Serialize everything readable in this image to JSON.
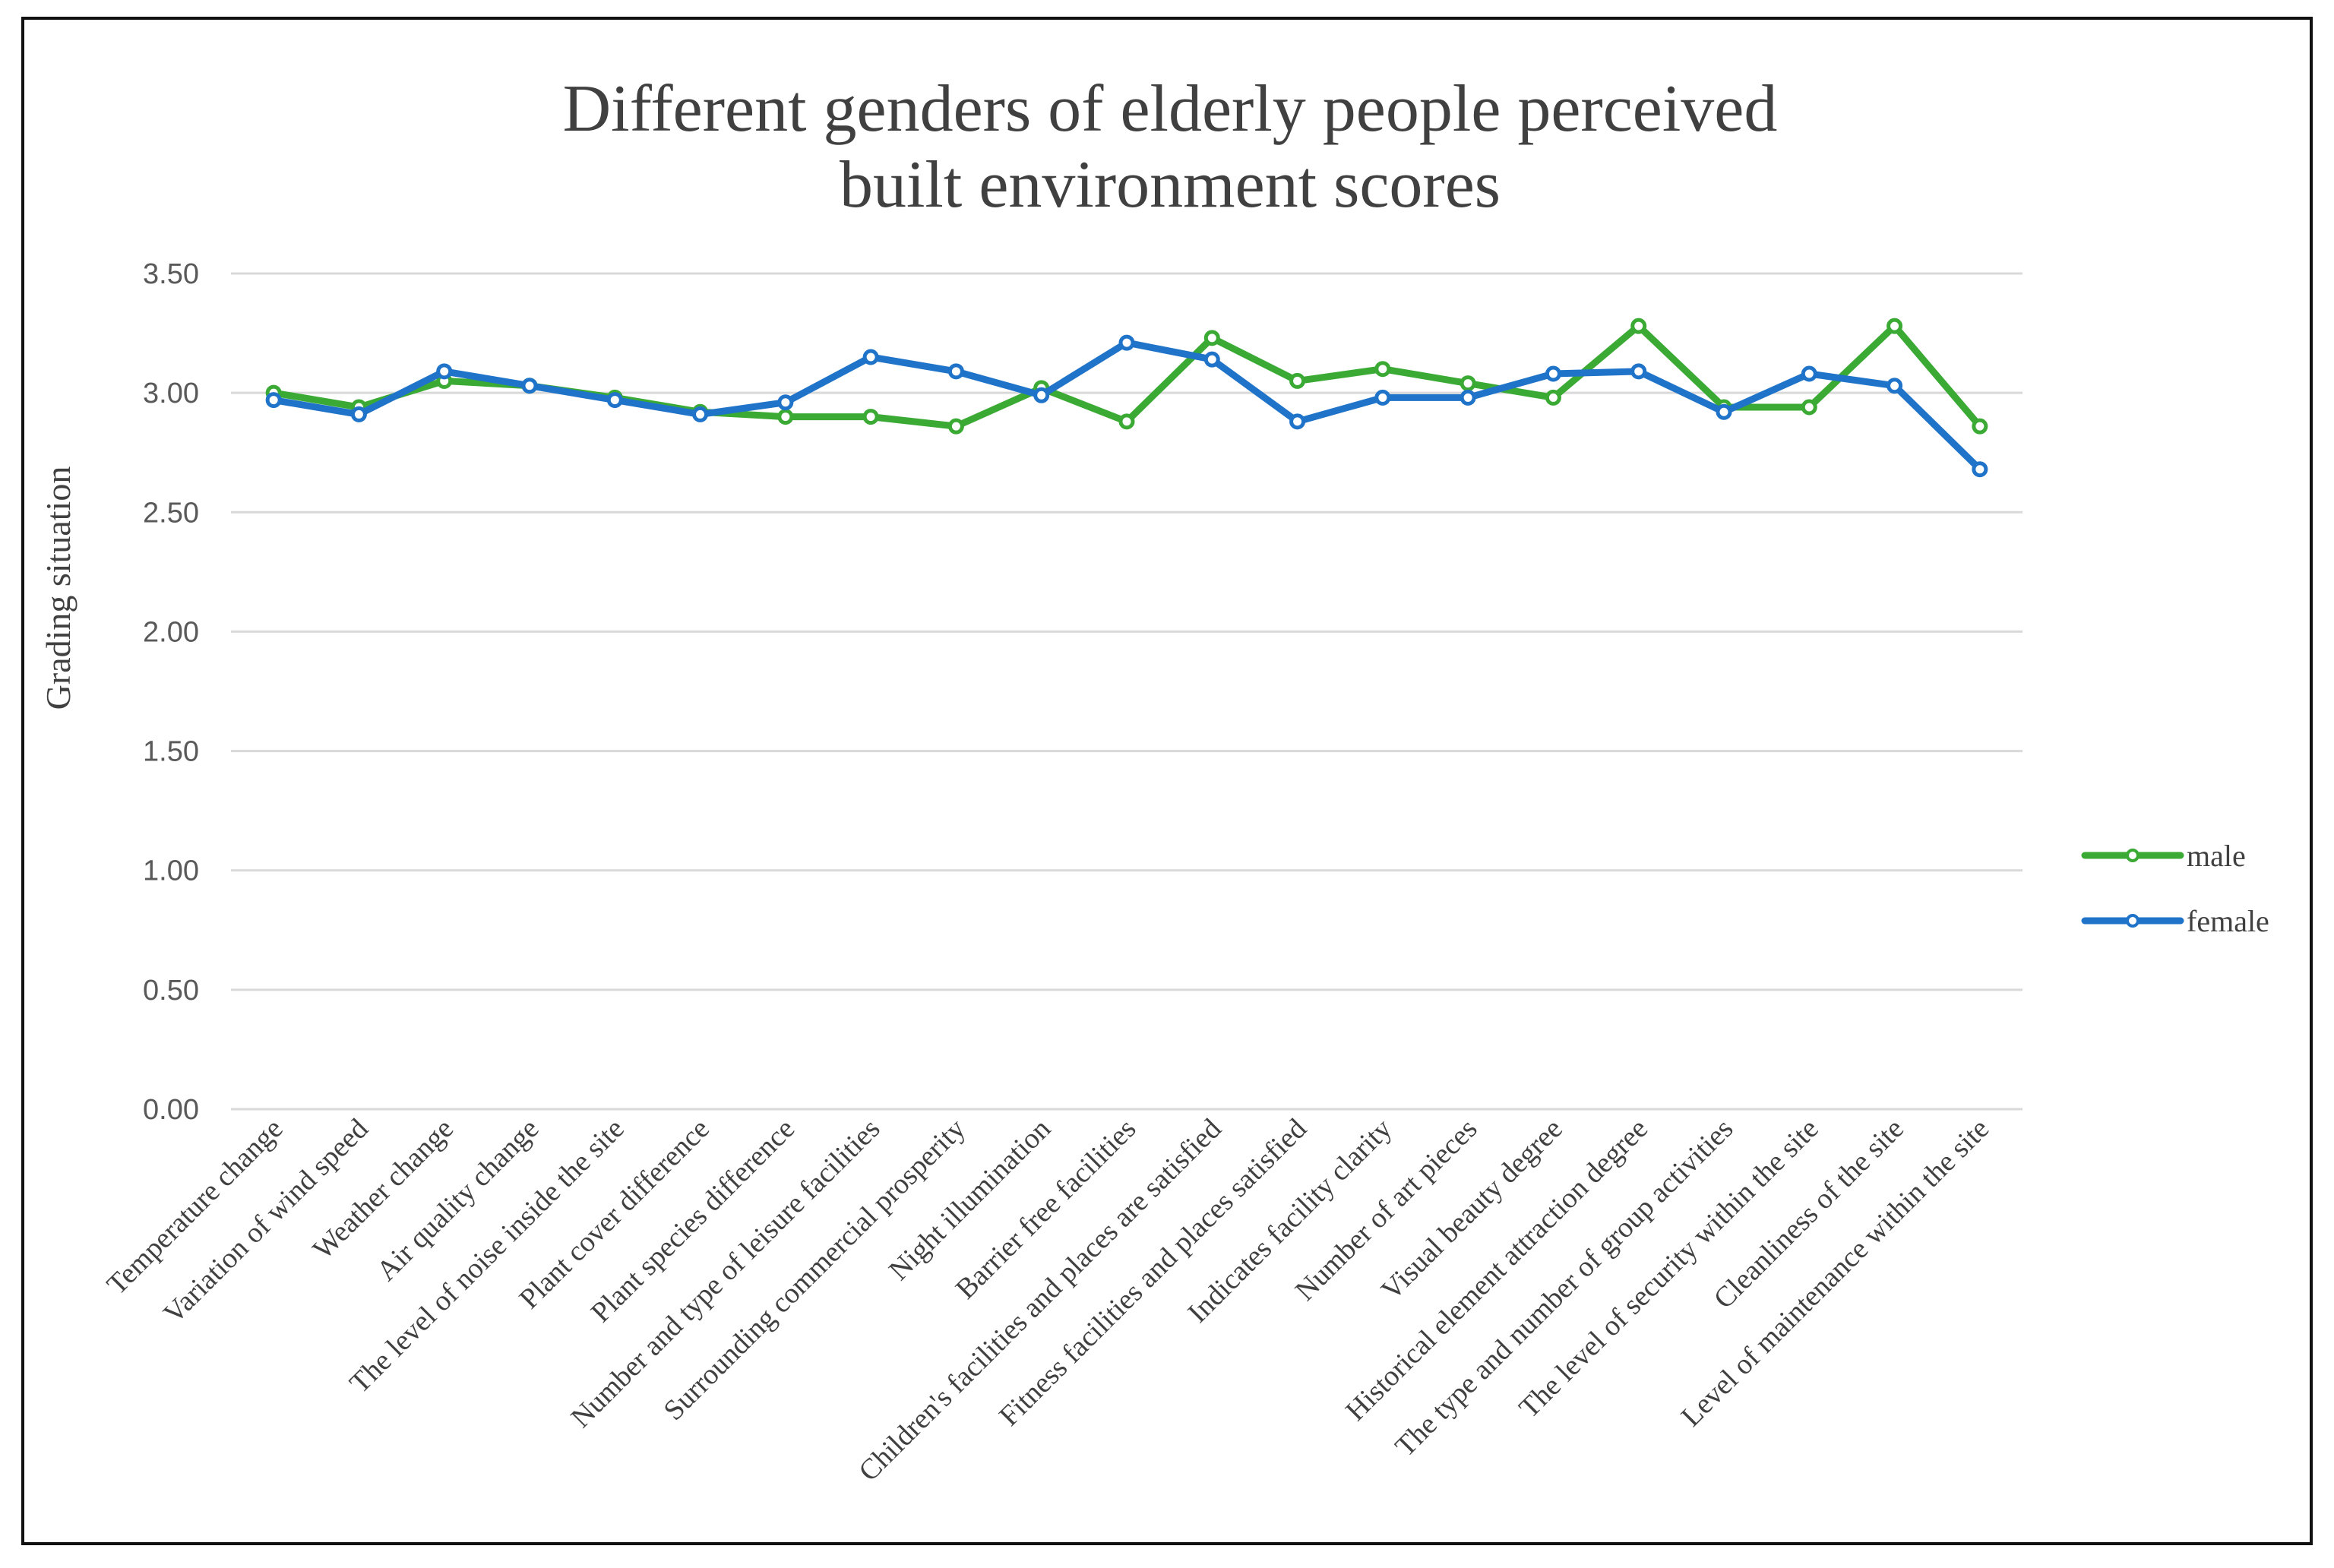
{
  "chart_data": {
    "type": "line",
    "title": [
      "Different genders of elderly people perceived",
      "built environment scores"
    ],
    "xlabel": "",
    "ylabel": "Grading situation",
    "ylim": [
      0,
      3.5
    ],
    "ytick_step": 0.5,
    "ytick_labels": [
      "0.00",
      "0.50",
      "1.00",
      "1.50",
      "2.00",
      "2.50",
      "3.00",
      "3.50"
    ],
    "grid": true,
    "legend_position": "right",
    "categories": [
      "Temperature change",
      "Variation of wind speed",
      "Weather change",
      "Air quality change",
      "The level of noise inside the site",
      "Plant cover difference",
      "Plant species difference",
      "Number and type of leisure facilities",
      "Surrounding commercial prosperity",
      "Night illumination",
      "Barrier free facilities",
      "Children's facilities and places are satisfied",
      "Fitness facilities and places satisfied",
      "Indicates facility clarity",
      "Number of art pieces",
      "Visual beauty degree",
      "Historical element attraction degree",
      "The type and number of group activities",
      "The level of security within the site",
      "Cleanliness of the site",
      "Level of maintenance within the site"
    ],
    "series": [
      {
        "name": "male",
        "color": "#3aaa35",
        "values": [
          3.0,
          2.94,
          3.05,
          3.03,
          2.98,
          2.92,
          2.9,
          2.9,
          2.86,
          3.02,
          2.88,
          3.23,
          3.05,
          3.1,
          3.04,
          2.98,
          3.28,
          2.94,
          2.94,
          3.28,
          2.86
        ]
      },
      {
        "name": "female",
        "color": "#1f73c8",
        "values": [
          2.97,
          2.91,
          3.09,
          3.03,
          2.97,
          2.91,
          2.96,
          3.15,
          3.09,
          2.99,
          3.21,
          3.14,
          2.88,
          2.98,
          2.98,
          3.08,
          3.09,
          2.92,
          3.08,
          3.03,
          2.68
        ]
      }
    ]
  }
}
